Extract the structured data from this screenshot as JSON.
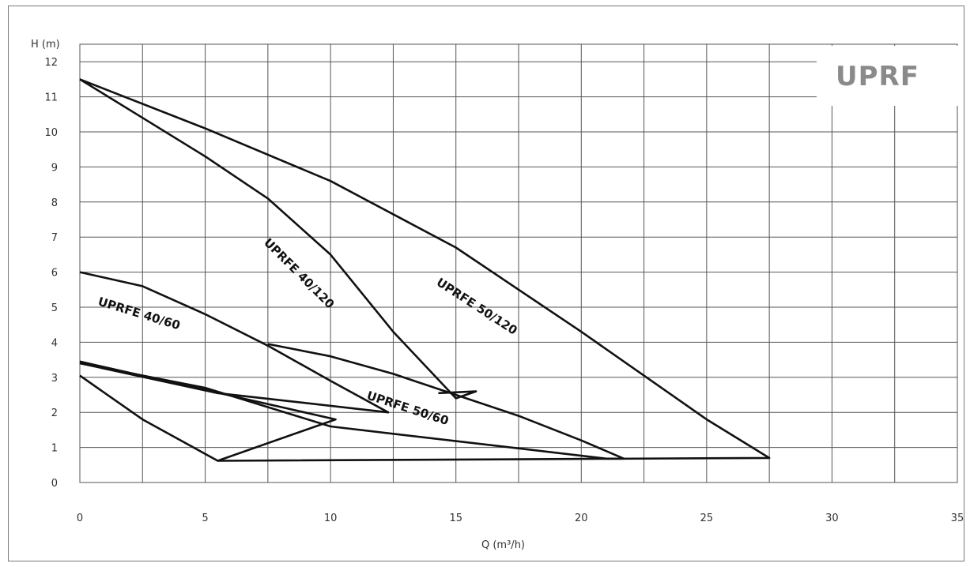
{
  "chart_data": {
    "type": "line",
    "title": "UPRF",
    "xlabel": "Q (m³/h)",
    "ylabel": "H (m)",
    "xlim": [
      0,
      35
    ],
    "ylim": [
      0,
      12.5
    ],
    "x_ticks": [
      0,
      5,
      10,
      15,
      20,
      25,
      30,
      35
    ],
    "y_ticks": [
      0,
      1,
      2,
      3,
      4,
      5,
      6,
      7,
      8,
      9,
      10,
      11,
      12
    ],
    "grid": true,
    "series": [
      {
        "name": "UPRFE 40/120",
        "points": [
          [
            0,
            11.5
          ],
          [
            2.5,
            10.4
          ],
          [
            5,
            9.3
          ],
          [
            7.5,
            8.1
          ],
          [
            10,
            6.5
          ],
          [
            12.5,
            4.3
          ],
          [
            15,
            2.4
          ],
          [
            15.8,
            2.6
          ],
          [
            14.3,
            2.55
          ]
        ]
      },
      {
        "name": "UPRFE 50/120",
        "points": [
          [
            0,
            11.5
          ],
          [
            5,
            10.1
          ],
          [
            10,
            8.6
          ],
          [
            15,
            6.7
          ],
          [
            20,
            4.3
          ],
          [
            25,
            1.8
          ],
          [
            27.5,
            0.7
          ],
          [
            5.5,
            0.62
          ]
        ]
      },
      {
        "name": "UPRFE 40/60",
        "points": [
          [
            0,
            6.0
          ],
          [
            2.5,
            5.6
          ],
          [
            5,
            4.8
          ],
          [
            7.5,
            3.9
          ],
          [
            10,
            2.9
          ],
          [
            12.3,
            2.0
          ],
          [
            5.5,
            2.55
          ],
          [
            0,
            3.4
          ]
        ]
      },
      {
        "name": "UPRFE 50/60",
        "points": [
          [
            7.5,
            3.95
          ],
          [
            10,
            3.6
          ],
          [
            12.5,
            3.1
          ],
          [
            15,
            2.5
          ],
          [
            17.5,
            1.9
          ],
          [
            20,
            1.2
          ],
          [
            21.7,
            0.68
          ],
          [
            21,
            0.68
          ],
          [
            10,
            1.6
          ],
          [
            5,
            2.7
          ],
          [
            0,
            3.4
          ]
        ]
      },
      {
        "name": "",
        "points": [
          [
            0,
            3.05
          ],
          [
            2.5,
            1.8
          ],
          [
            5.5,
            0.62
          ],
          [
            10.2,
            1.8
          ],
          [
            0,
            3.45
          ]
        ]
      }
    ],
    "curve_labels": [
      "UPRFE 40/120",
      "UPRFE 50/120",
      "UPRFE 40/60",
      "UPRFE 50/60"
    ]
  }
}
